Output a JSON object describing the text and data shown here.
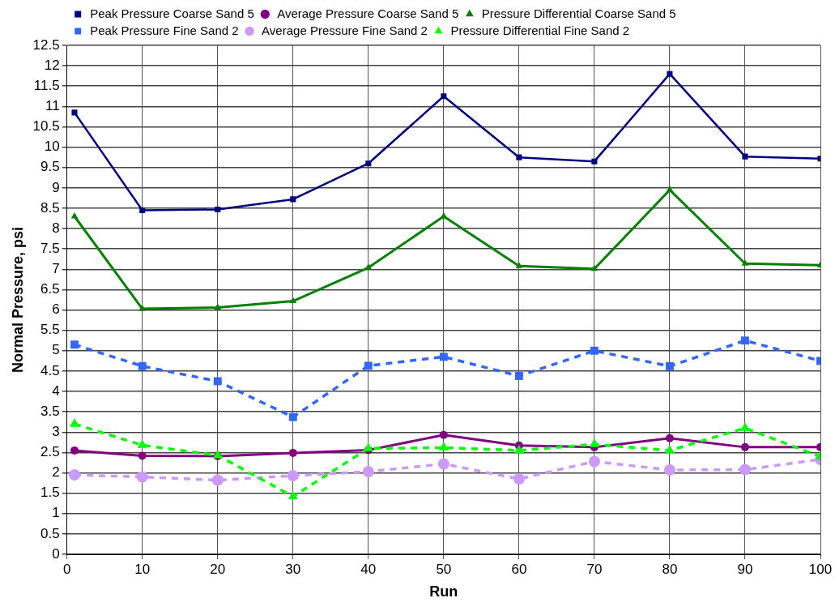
{
  "chart_data": {
    "type": "line",
    "xlabel": "Run",
    "ylabel": "Normal Pressure, psi",
    "x": [
      1,
      10,
      20,
      30,
      40,
      50,
      60,
      70,
      80,
      90,
      100
    ],
    "xlim": [
      0,
      100
    ],
    "xticks": [
      0,
      10,
      20,
      30,
      40,
      50,
      60,
      70,
      80,
      90,
      100
    ],
    "ylim": [
      0,
      12.5
    ],
    "yticks": [
      0,
      0.5,
      1,
      1.5,
      2,
      2.5,
      3,
      3.5,
      4,
      4.5,
      5,
      5.5,
      6,
      6.5,
      7,
      7.5,
      8,
      8.5,
      9,
      9.5,
      10,
      10.5,
      11,
      11.5,
      12,
      12.5
    ],
    "grid": true,
    "legend": "top left",
    "series": [
      {
        "name": "Peak Pressure Coarse Sand 5",
        "color": "#000080",
        "marker": "square",
        "line_style": "solid",
        "values": [
          10.85,
          8.45,
          8.47,
          8.72,
          9.6,
          11.25,
          9.75,
          9.65,
          11.8,
          9.77,
          9.72
        ]
      },
      {
        "name": "Average Pressure Coarse Sand 5",
        "color": "#800080",
        "marker": "circle",
        "line_style": "solid",
        "values": [
          2.55,
          2.42,
          2.41,
          2.49,
          2.56,
          2.93,
          2.67,
          2.63,
          2.85,
          2.63,
          2.63
        ]
      },
      {
        "name": "Pressure Differential Coarse Sand 5",
        "color": "#008000",
        "marker": "triangle",
        "line_style": "solid",
        "values": [
          8.3,
          6.03,
          6.06,
          6.22,
          7.04,
          8.3,
          7.08,
          7.01,
          8.95,
          7.14,
          7.1
        ]
      },
      {
        "name": "Peak Pressure Fine Sand 2",
        "color": "#3366ff",
        "marker": "square",
        "line_style": "dashed",
        "values": [
          5.15,
          4.62,
          4.25,
          3.37,
          4.63,
          4.85,
          4.38,
          5.0,
          4.62,
          5.25,
          4.75
        ]
      },
      {
        "name": "Average Pressure Fine Sand 2",
        "color": "#cc99ff",
        "marker": "circle",
        "line_style": "dashed",
        "values": [
          1.95,
          1.9,
          1.82,
          1.93,
          2.03,
          2.22,
          1.85,
          2.28,
          2.07,
          2.08,
          2.33
        ]
      },
      {
        "name": "Pressure Differential Fine Sand 2",
        "color": "#00ff00",
        "marker": "triangle",
        "line_style": "dashed",
        "values": [
          3.2,
          2.68,
          2.43,
          1.42,
          2.6,
          2.62,
          2.55,
          2.7,
          2.55,
          3.1,
          2.4
        ]
      }
    ]
  }
}
